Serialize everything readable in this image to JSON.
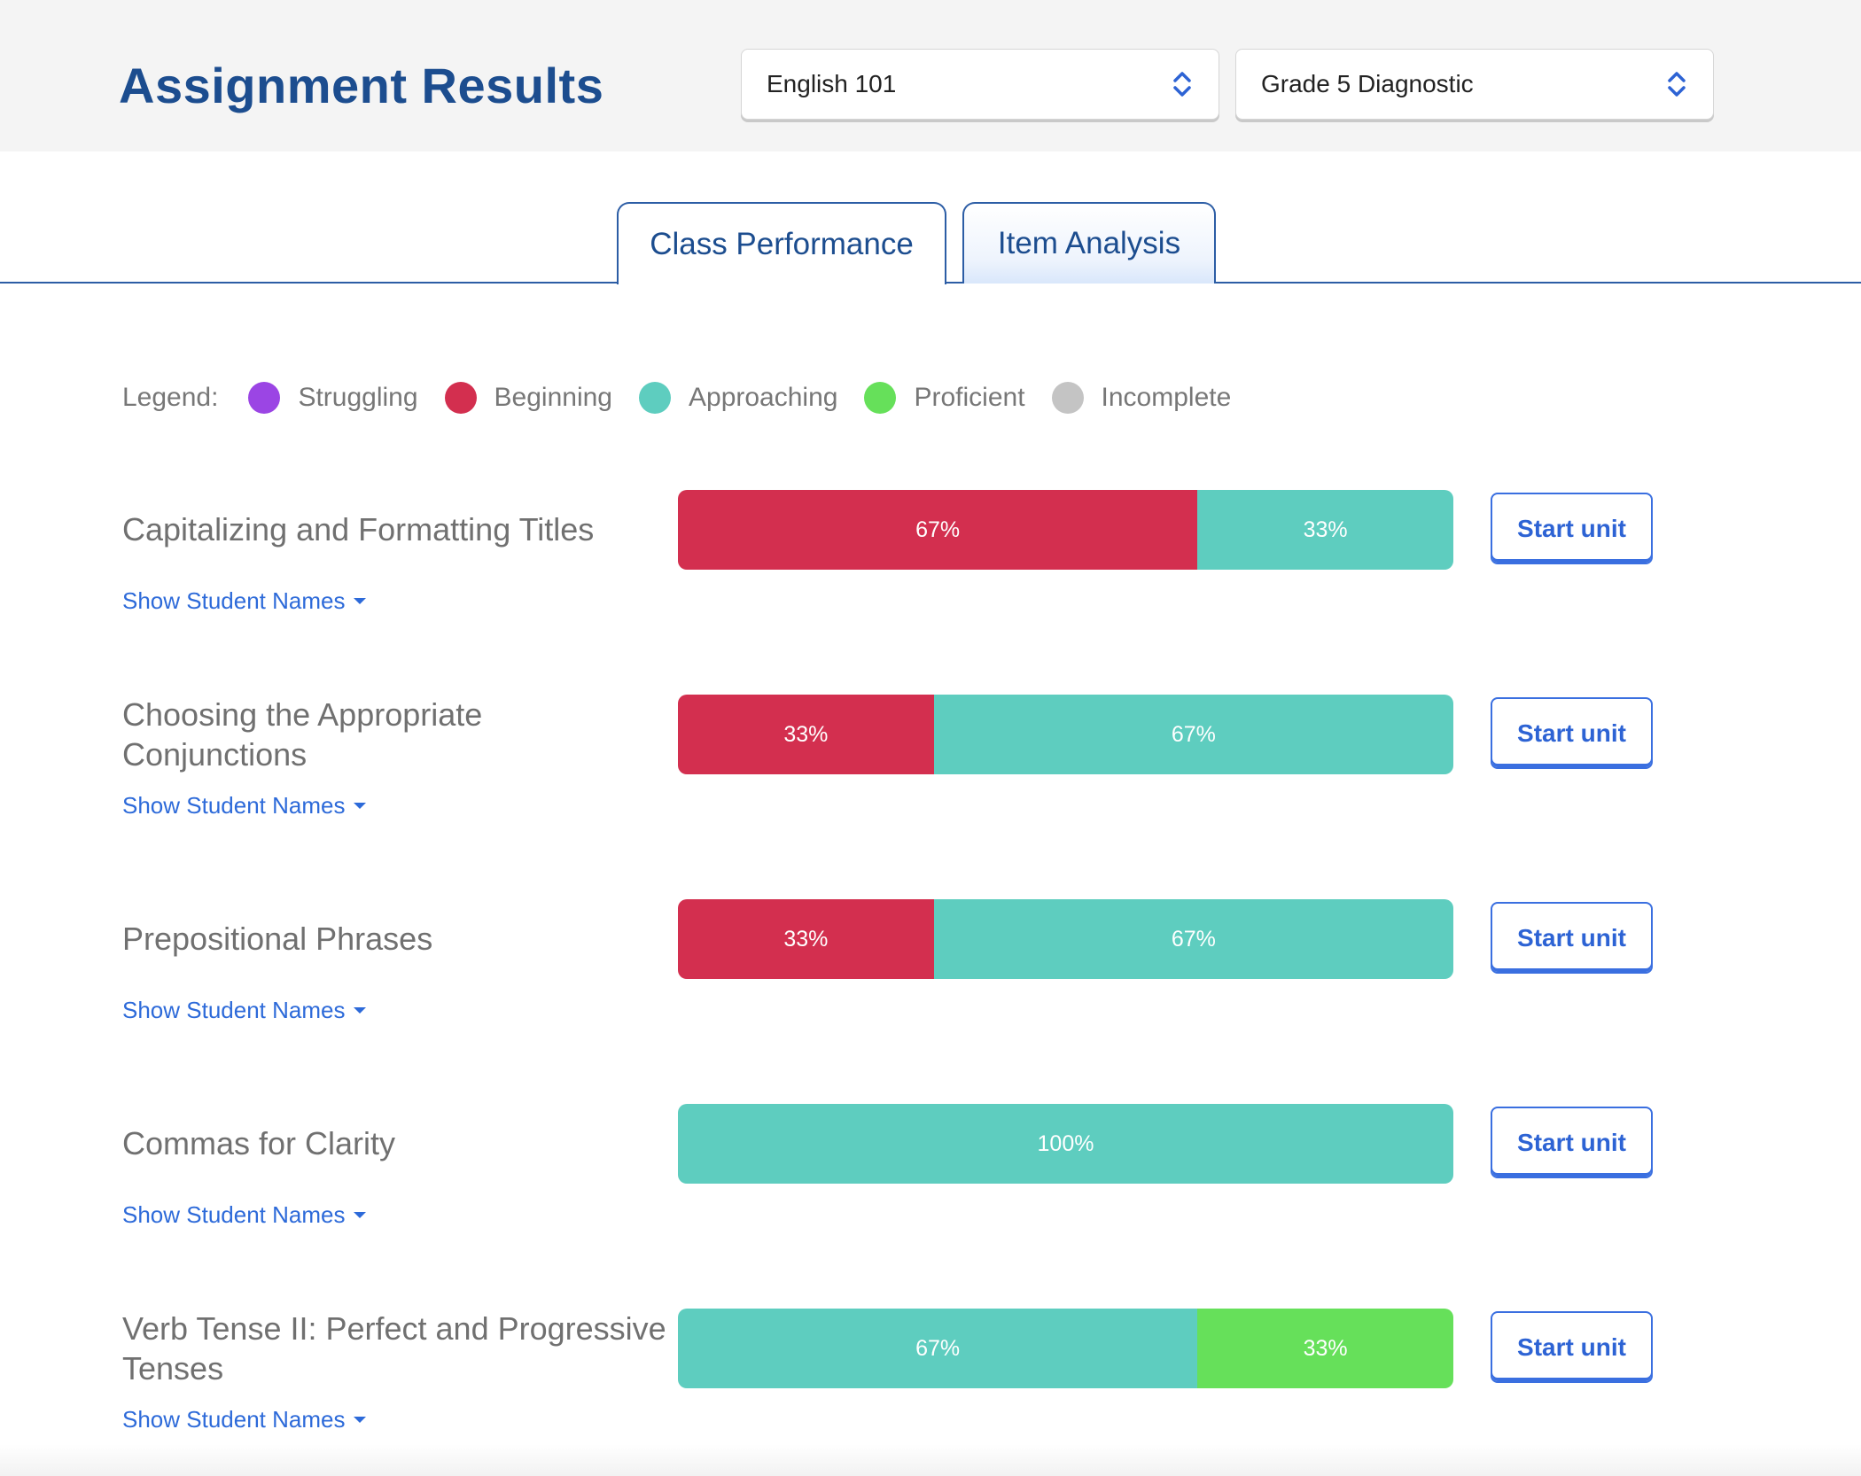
{
  "header": {
    "title": "Assignment Results",
    "class_select": {
      "value": "English 101"
    },
    "assignment_select": {
      "value": "Grade 5 Diagnostic"
    }
  },
  "tabs": [
    {
      "label": "Class Performance",
      "active": true
    },
    {
      "label": "Item Analysis",
      "active": false
    }
  ],
  "legend": {
    "label": "Legend:",
    "items": [
      {
        "label": "Struggling",
        "color": "#9b45e4"
      },
      {
        "label": "Beginning",
        "color": "#d32f4f"
      },
      {
        "label": "Approaching",
        "color": "#5ecdbf"
      },
      {
        "label": "Proficient",
        "color": "#66e05a"
      },
      {
        "label": "Incomplete",
        "color": "#c4c4c4"
      }
    ]
  },
  "units": [
    {
      "title": "Capitalizing and Formatting Titles",
      "show_names_label": "Show Student Names",
      "button_label": "Start unit",
      "segments": [
        {
          "level": "Beginning",
          "percent": 67,
          "label": "67%"
        },
        {
          "level": "Approaching",
          "percent": 33,
          "label": "33%"
        }
      ]
    },
    {
      "title": "Choosing the Appropriate Conjunctions",
      "show_names_label": "Show Student Names",
      "button_label": "Start unit",
      "segments": [
        {
          "level": "Beginning",
          "percent": 33,
          "label": "33%"
        },
        {
          "level": "Approaching",
          "percent": 67,
          "label": "67%"
        }
      ]
    },
    {
      "title": "Prepositional Phrases",
      "show_names_label": "Show Student Names",
      "button_label": "Start unit",
      "segments": [
        {
          "level": "Beginning",
          "percent": 33,
          "label": "33%"
        },
        {
          "level": "Approaching",
          "percent": 67,
          "label": "67%"
        }
      ]
    },
    {
      "title": "Commas for Clarity",
      "show_names_label": "Show Student Names",
      "button_label": "Start unit",
      "segments": [
        {
          "level": "Approaching",
          "percent": 100,
          "label": "100%"
        }
      ]
    },
    {
      "title": "Verb Tense II: Perfect and Progressive Tenses",
      "show_names_label": "Show Student Names",
      "button_label": "Start unit",
      "segments": [
        {
          "level": "Approaching",
          "percent": 67,
          "label": "67%"
        },
        {
          "level": "Proficient",
          "percent": 33,
          "label": "33%"
        }
      ]
    }
  ],
  "colors": {
    "accent": "#2d63d4",
    "title": "#1c4d8f"
  }
}
